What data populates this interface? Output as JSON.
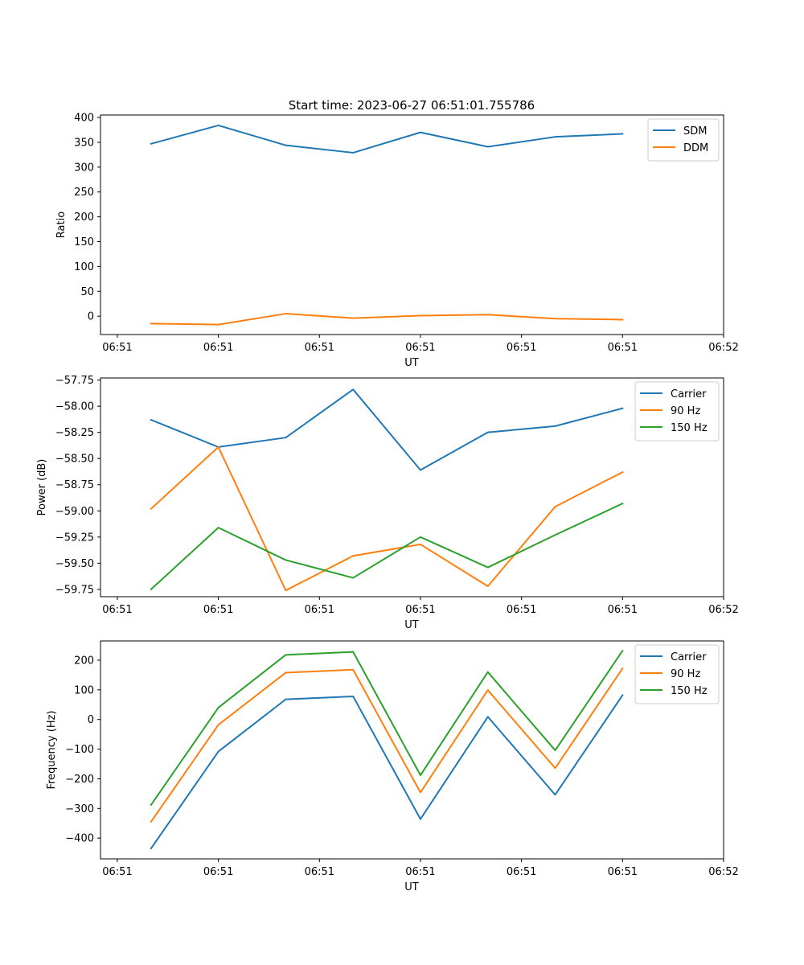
{
  "figure": {
    "title": "Start time: 2023-06-27 06:51:01.755786"
  },
  "chart_data": [
    {
      "type": "line",
      "title": "Start time: 2023-06-27 06:51:01.755786",
      "xlabel": "UT",
      "ylabel": "Ratio",
      "x": [
        1,
        2,
        3,
        4,
        5,
        6,
        7,
        8
      ],
      "xlim": [
        0.25,
        9.5
      ],
      "xticks": [
        0.5,
        2,
        3.5,
        5,
        6.5,
        8,
        9.5
      ],
      "xtick_labels": [
        "06:51",
        "06:51",
        "06:51",
        "06:51",
        "06:51",
        "06:51",
        "06:52"
      ],
      "ylim": [
        -37,
        405
      ],
      "yticks": [
        0,
        50,
        100,
        150,
        200,
        250,
        300,
        350,
        400
      ],
      "ytick_labels": [
        "0",
        "50",
        "100",
        "150",
        "200",
        "250",
        "300",
        "350",
        "400"
      ],
      "grid": false,
      "legend": "top-right",
      "series": [
        {
          "name": "SDM",
          "color": "#1f77b4",
          "values": [
            347,
            384,
            344,
            329,
            370,
            341,
            361,
            367
          ]
        },
        {
          "name": "DDM",
          "color": "#ff7f0e",
          "values": [
            -15,
            -17,
            5,
            -4,
            1,
            3,
            -5,
            -7
          ]
        }
      ]
    },
    {
      "type": "line",
      "xlabel": "UT",
      "ylabel": "Power (dB)",
      "x": [
        1,
        2,
        3,
        4,
        5,
        6,
        7,
        8
      ],
      "xlim": [
        0.25,
        9.5
      ],
      "xticks": [
        0.5,
        2,
        3.5,
        5,
        6.5,
        8,
        9.5
      ],
      "xtick_labels": [
        "06:51",
        "06:51",
        "06:51",
        "06:51",
        "06:51",
        "06:51",
        "06:52"
      ],
      "ylim": [
        -59.82,
        -57.73
      ],
      "yticks": [
        -57.75,
        -58.0,
        -58.25,
        -58.5,
        -58.75,
        -59.0,
        -59.25,
        -59.5,
        -59.75
      ],
      "ytick_labels": [
        "−57.75",
        "−58.00",
        "−58.25",
        "−58.50",
        "−58.75",
        "−59.00",
        "−59.25",
        "−59.50",
        "−59.75"
      ],
      "grid": false,
      "legend": "top-right",
      "series": [
        {
          "name": "Carrier",
          "color": "#1f77b4",
          "values": [
            -58.13,
            -58.39,
            -58.3,
            -57.84,
            -58.61,
            -58.25,
            -58.19,
            -58.02
          ]
        },
        {
          "name": "90 Hz",
          "color": "#ff7f0e",
          "values": [
            -58.98,
            -58.39,
            -59.76,
            -59.43,
            -59.32,
            -59.72,
            -58.96,
            -58.63
          ]
        },
        {
          "name": "150 Hz",
          "color": "#2ca02c",
          "values": [
            -59.75,
            -59.16,
            -59.47,
            -59.64,
            -59.25,
            -59.54,
            -59.23,
            -58.93
          ]
        }
      ]
    },
    {
      "type": "line",
      "xlabel": "UT",
      "ylabel": "Frequency (Hz)",
      "x": [
        1,
        2,
        3,
        4,
        5,
        6,
        7,
        8
      ],
      "xlim": [
        0.25,
        9.5
      ],
      "xticks": [
        0.5,
        2,
        3.5,
        5,
        6.5,
        8,
        9.5
      ],
      "xtick_labels": [
        "06:51",
        "06:51",
        "06:51",
        "06:51",
        "06:51",
        "06:51",
        "06:52"
      ],
      "ylim": [
        -470,
        265
      ],
      "yticks": [
        200,
        100,
        0,
        -100,
        -200,
        -300,
        -400
      ],
      "ytick_labels": [
        "200",
        "100",
        "0",
        "−100",
        "−200",
        "−300",
        "−400"
      ],
      "grid": false,
      "legend": "top-right",
      "series": [
        {
          "name": "Carrier",
          "color": "#1f77b4",
          "values": [
            -435,
            -108,
            68,
            78,
            -336,
            9,
            -254,
            82
          ]
        },
        {
          "name": "90 Hz",
          "color": "#ff7f0e",
          "values": [
            -345,
            -18,
            158,
            168,
            -246,
            99,
            -164,
            172
          ]
        },
        {
          "name": "150 Hz",
          "color": "#2ca02c",
          "values": [
            -288,
            40,
            218,
            228,
            -188,
            160,
            -104,
            232
          ]
        }
      ]
    }
  ]
}
